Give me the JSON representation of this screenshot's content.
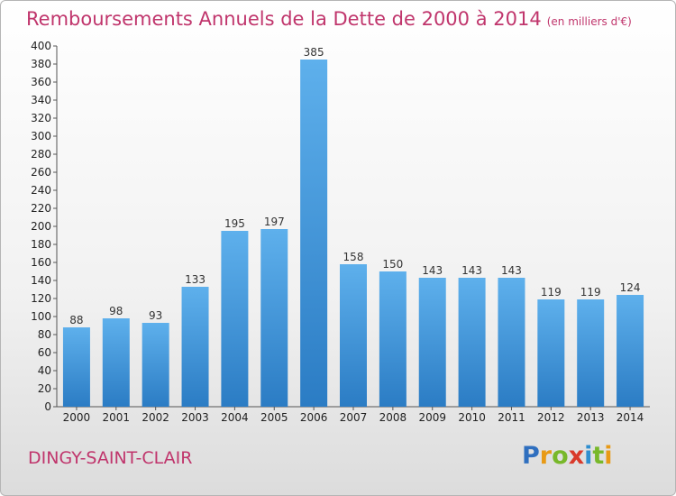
{
  "header": {
    "title": "Remboursements Annuels de la Dette de 2000 à 2014",
    "unit": "(en milliers d'€)"
  },
  "footer": {
    "commune": "DINGY-SAINT-CLAIR",
    "brand_letters": [
      {
        "ch": "P",
        "color": "#2f6fbf"
      },
      {
        "ch": "r",
        "color": "#e89a16"
      },
      {
        "ch": "o",
        "color": "#78b82a"
      },
      {
        "ch": "x",
        "color": "#d93a2b"
      },
      {
        "ch": "i",
        "color": "#2f8fd0"
      },
      {
        "ch": "t",
        "color": "#78b82a"
      },
      {
        "ch": "i",
        "color": "#e89a16"
      }
    ]
  },
  "chart_data": {
    "type": "bar",
    "categories": [
      "2000",
      "2001",
      "2002",
      "2003",
      "2004",
      "2005",
      "2006",
      "2007",
      "2008",
      "2009",
      "2010",
      "2011",
      "2012",
      "2013",
      "2014"
    ],
    "values": [
      88,
      98,
      93,
      133,
      195,
      197,
      385,
      158,
      150,
      143,
      143,
      143,
      119,
      119,
      124
    ],
    "title": "Remboursements Annuels de la Dette de 2000 à 2014",
    "xlabel": "",
    "ylabel": "",
    "ylim": [
      0,
      400
    ],
    "yticks_step": 20,
    "grid": false,
    "data_labels": true,
    "bar_color": "#4f9fe0"
  }
}
